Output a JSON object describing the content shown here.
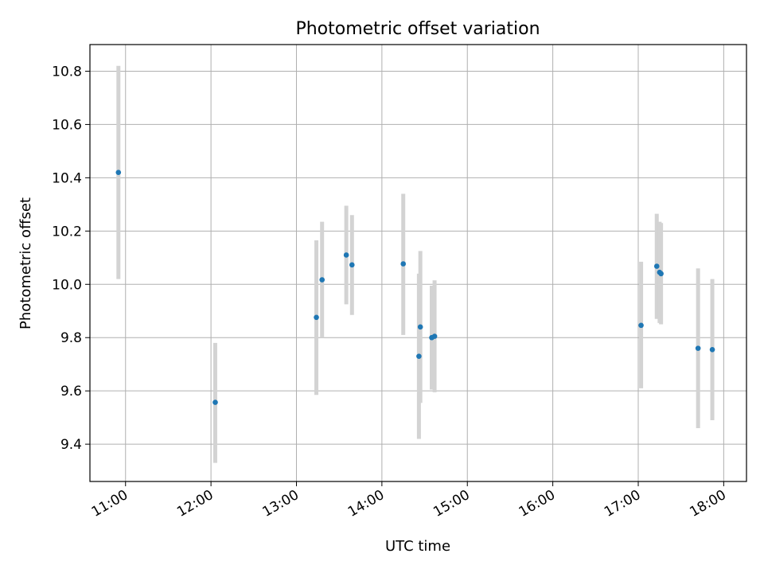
{
  "chart_data": {
    "type": "scatter",
    "title": "Photometric offset variation",
    "xlabel": "UTC time",
    "ylabel": "Photometric offset",
    "x_ticks": [
      "11:00",
      "12:00",
      "13:00",
      "14:00",
      "15:00",
      "16:00",
      "17:00",
      "18:00"
    ],
    "y_ticks": [
      "9.4",
      "9.6",
      "9.8",
      "10.0",
      "10.2",
      "10.4",
      "10.6",
      "10.8"
    ],
    "xlim": [
      "10:35",
      "18:16"
    ],
    "ylim": [
      9.26,
      10.9
    ],
    "grid": true,
    "error_bars": true,
    "points": [
      {
        "time": "10:55",
        "y": 10.42,
        "low": 10.02,
        "high": 10.82
      },
      {
        "time": "12:03",
        "y": 9.557,
        "low": 9.33,
        "high": 9.78
      },
      {
        "time": "13:14",
        "y": 9.876,
        "low": 9.585,
        "high": 10.165
      },
      {
        "time": "13:18",
        "y": 10.017,
        "low": 9.8,
        "high": 10.235
      },
      {
        "time": "13:35",
        "y": 10.11,
        "low": 9.925,
        "high": 10.295
      },
      {
        "time": "13:39",
        "y": 10.073,
        "low": 9.885,
        "high": 10.26
      },
      {
        "time": "14:15",
        "y": 10.077,
        "low": 9.81,
        "high": 10.34
      },
      {
        "time": "14:26",
        "y": 9.73,
        "low": 9.42,
        "high": 10.04
      },
      {
        "time": "14:27",
        "y": 9.84,
        "low": 9.555,
        "high": 10.125
      },
      {
        "time": "14:35",
        "y": 9.8,
        "low": 9.605,
        "high": 9.995
      },
      {
        "time": "14:37",
        "y": 9.805,
        "low": 9.595,
        "high": 10.015
      },
      {
        "time": "17:02",
        "y": 9.846,
        "low": 9.61,
        "high": 10.085
      },
      {
        "time": "17:13",
        "y": 10.068,
        "low": 9.87,
        "high": 10.265
      },
      {
        "time": "17:15",
        "y": 10.045,
        "low": 9.855,
        "high": 10.235
      },
      {
        "time": "17:16",
        "y": 10.04,
        "low": 9.85,
        "high": 10.23
      },
      {
        "time": "17:42",
        "y": 9.76,
        "low": 9.46,
        "high": 10.06
      },
      {
        "time": "17:52",
        "y": 9.755,
        "low": 9.49,
        "high": 10.02
      }
    ],
    "colors": {
      "point": "#1f77b4",
      "error_bar": "#d3d3d3",
      "grid": "#b0b0b0",
      "axes": "#000000"
    }
  }
}
